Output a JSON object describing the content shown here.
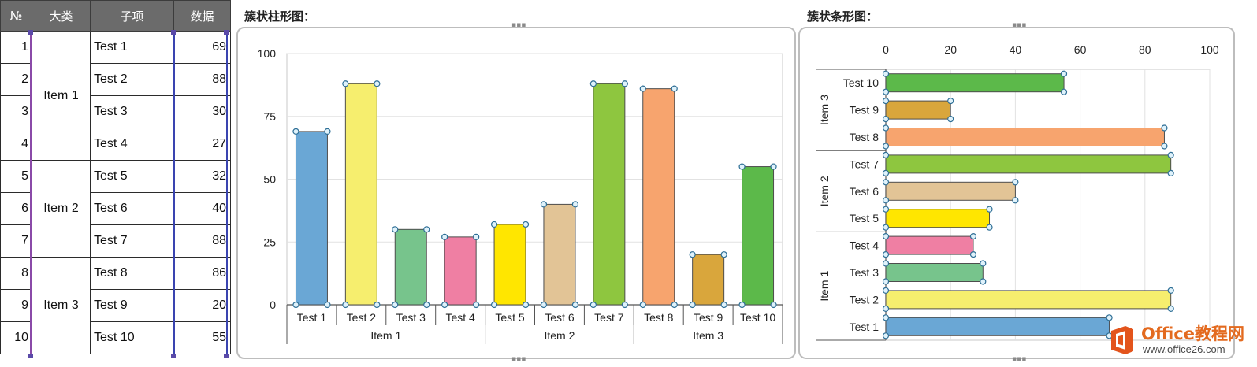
{
  "table": {
    "headers": [
      "№",
      "大类",
      "子项",
      "数据"
    ],
    "rows": [
      {
        "no": "1",
        "sub": "Test 1",
        "value": "69"
      },
      {
        "no": "2",
        "sub": "Test 2",
        "value": "88"
      },
      {
        "no": "3",
        "sub": "Test 3",
        "value": "30"
      },
      {
        "no": "4",
        "sub": "Test 4",
        "value": "27"
      },
      {
        "no": "5",
        "sub": "Test 5",
        "value": "32"
      },
      {
        "no": "6",
        "sub": "Test 6",
        "value": "40"
      },
      {
        "no": "7",
        "sub": "Test 7",
        "value": "88"
      },
      {
        "no": "8",
        "sub": "Test 8",
        "value": "86"
      },
      {
        "no": "9",
        "sub": "Test 9",
        "value": "20"
      },
      {
        "no": "10",
        "sub": "Test 10",
        "value": "55"
      }
    ],
    "groups": [
      "Item 1",
      "Item 2",
      "Item 3"
    ]
  },
  "column_panel": {
    "title": "簇状柱形图："
  },
  "bar_panel": {
    "title": "簇状条形图："
  },
  "watermark": {
    "brand": "Office教程网",
    "url": "www.office26.com"
  },
  "chart_data": [
    {
      "type": "bar",
      "orientation": "vertical",
      "title": "",
      "categories": [
        "Test 1",
        "Test 2",
        "Test 3",
        "Test 4",
        "Test 5",
        "Test 6",
        "Test 7",
        "Test 8",
        "Test 9",
        "Test 10"
      ],
      "groups": [
        {
          "name": "Item 1",
          "count": 4
        },
        {
          "name": "Item 2",
          "count": 3
        },
        {
          "name": "Item 3",
          "count": 3
        }
      ],
      "values": [
        69,
        88,
        30,
        27,
        32,
        40,
        88,
        86,
        20,
        55
      ],
      "colors": [
        "#6aa7d5",
        "#f6ee6e",
        "#77c48c",
        "#ef7fa3",
        "#ffe600",
        "#e2c496",
        "#8ec63f",
        "#f7a46e",
        "#d9a63c",
        "#5cb94a"
      ],
      "ylim": [
        0,
        100
      ],
      "yticks": [
        0,
        25,
        50,
        75,
        100
      ],
      "grid": true
    },
    {
      "type": "bar",
      "orientation": "horizontal",
      "title": "",
      "categories": [
        "Test 1",
        "Test 2",
        "Test 3",
        "Test 4",
        "Test 5",
        "Test 6",
        "Test 7",
        "Test 8",
        "Test 9",
        "Test 10"
      ],
      "groups": [
        {
          "name": "Item 1",
          "count": 4
        },
        {
          "name": "Item 2",
          "count": 3
        },
        {
          "name": "Item 3",
          "count": 3
        }
      ],
      "values": [
        69,
        88,
        30,
        27,
        32,
        40,
        88,
        86,
        20,
        55
      ],
      "colors": [
        "#6aa7d5",
        "#f6ee6e",
        "#77c48c",
        "#ef7fa3",
        "#ffe600",
        "#e2c496",
        "#8ec63f",
        "#f7a46e",
        "#d9a63c",
        "#5cb94a"
      ],
      "xlim": [
        0,
        100
      ],
      "xticks": [
        0,
        20,
        40,
        60,
        80,
        100
      ],
      "axis_position": "top",
      "grid": true
    }
  ]
}
